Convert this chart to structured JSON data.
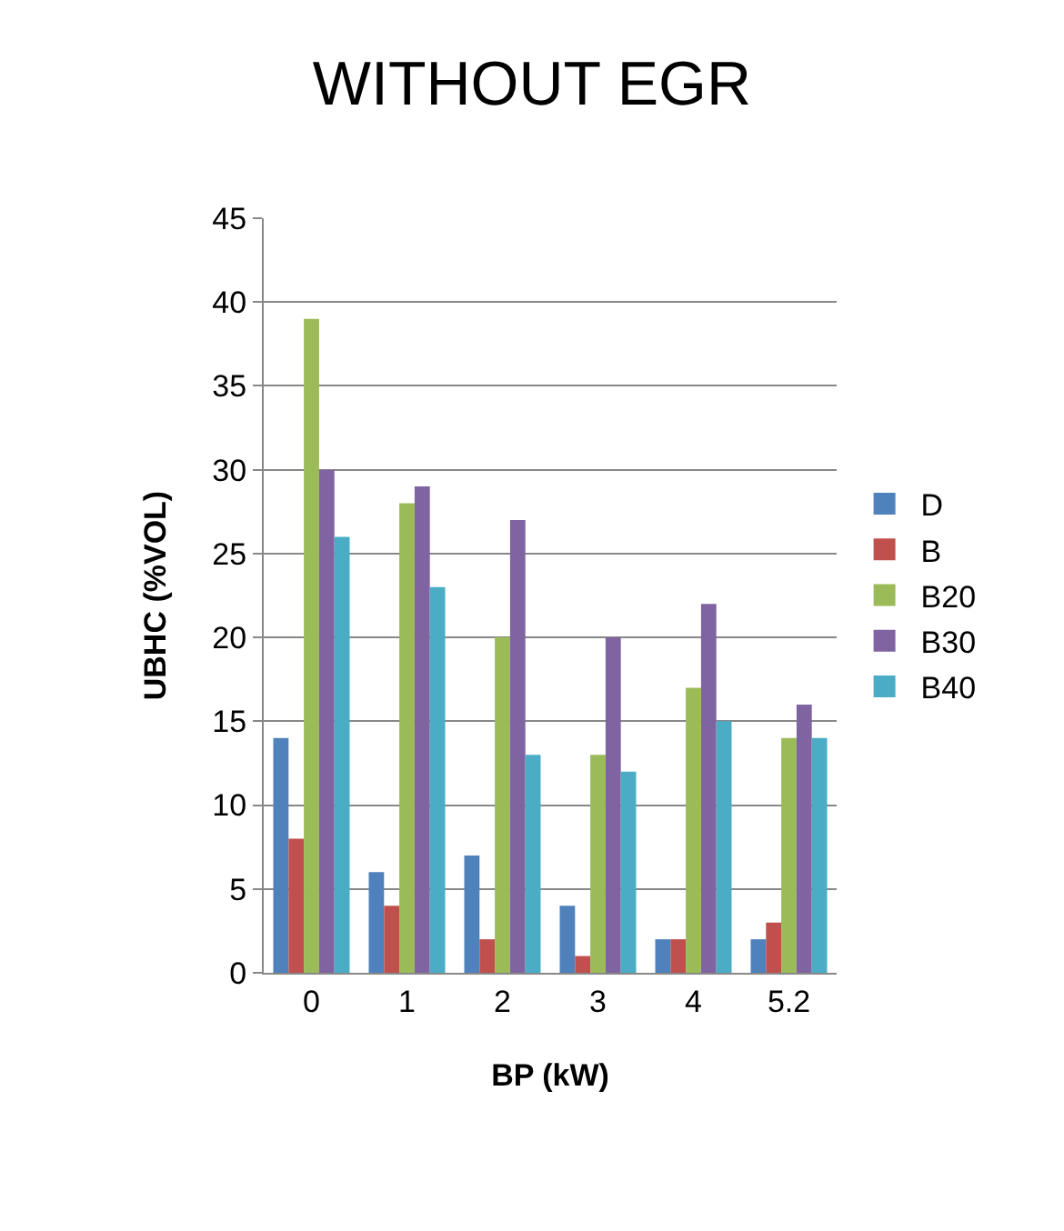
{
  "chart_data": {
    "type": "bar",
    "title": "WITHOUT EGR",
    "xlabel": "BP (kW)",
    "ylabel": "UBHC (%VOL)",
    "categories": [
      "0",
      "1",
      "2",
      "3",
      "4",
      "5.2"
    ],
    "series": [
      {
        "name": "D",
        "color": "#4f81bd",
        "values": [
          14,
          6,
          7,
          4,
          2,
          2
        ]
      },
      {
        "name": "B",
        "color": "#c0504d",
        "values": [
          8,
          4,
          2,
          1,
          2,
          3
        ]
      },
      {
        "name": "B20",
        "color": "#9bbb59",
        "values": [
          39,
          28,
          20,
          13,
          17,
          14
        ]
      },
      {
        "name": "B30",
        "color": "#8064a2",
        "values": [
          30,
          29,
          27,
          20,
          22,
          16
        ]
      },
      {
        "name": "B40",
        "color": "#4bacc6",
        "values": [
          26,
          23,
          13,
          12,
          15,
          14
        ]
      }
    ],
    "ylim": [
      0,
      45
    ],
    "yticks": [
      0,
      5,
      10,
      15,
      20,
      25,
      30,
      35,
      40,
      45
    ],
    "grid": "y",
    "legend": "right"
  }
}
